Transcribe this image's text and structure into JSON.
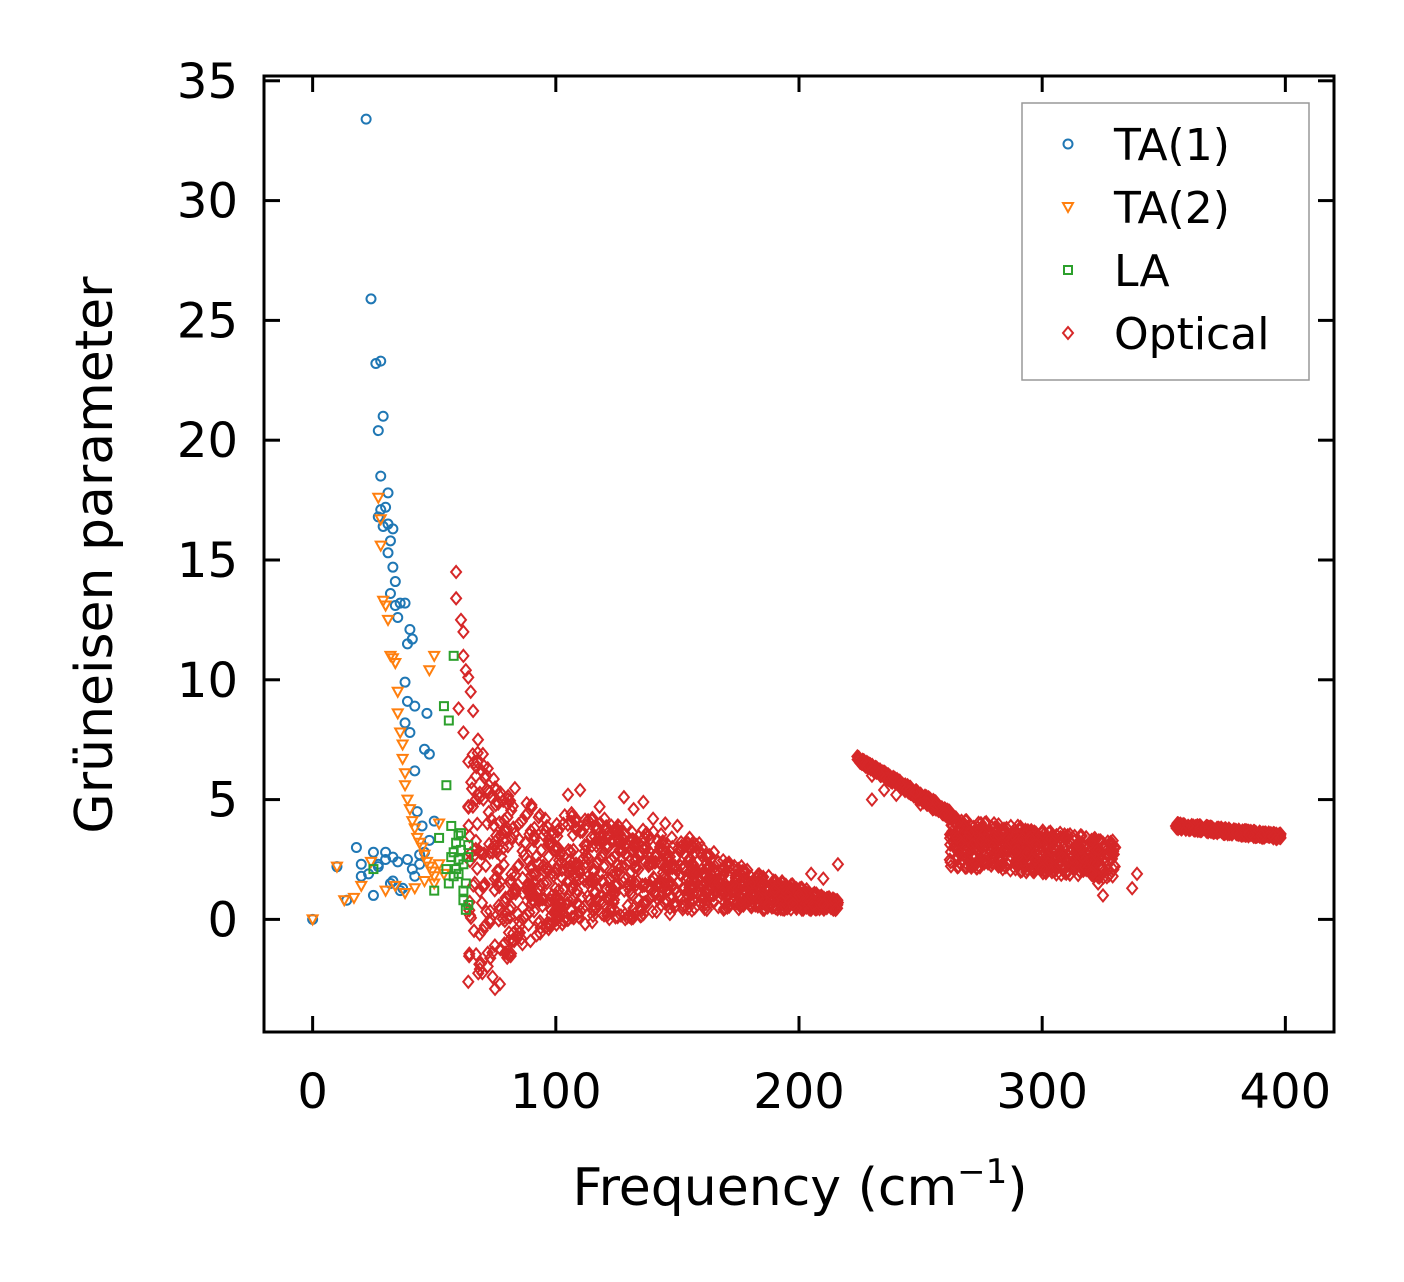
{
  "chart_data": {
    "type": "scatter",
    "title": "",
    "xlabel": "Frequency (cm",
    "xlabel_sup": "−1",
    "xlabel_close": ")",
    "ylabel": "Grüneisen parameter",
    "xlim": [
      -20,
      420
    ],
    "ylim": [
      -4.7,
      35.2
    ],
    "xticks": [
      0,
      100,
      200,
      300,
      400
    ],
    "xtick_labels": [
      "0",
      "100",
      "200",
      "300",
      "400"
    ],
    "yticks": [
      0,
      5,
      10,
      15,
      20,
      25,
      30,
      35
    ],
    "ytick_labels": [
      "0",
      "5",
      "10",
      "15",
      "20",
      "25",
      "30",
      "35"
    ],
    "grid": false,
    "legend_position": "top-right",
    "series": [
      {
        "name": "TA(1)",
        "marker": "circle",
        "color": "#1f77b4",
        "points": [
          [
            0,
            0
          ],
          [
            10,
            2.2
          ],
          [
            14,
            0.8
          ],
          [
            18,
            3
          ],
          [
            20,
            1.8
          ],
          [
            22,
            33.4
          ],
          [
            24,
            25.9
          ],
          [
            25,
            1
          ],
          [
            25,
            2.8
          ],
          [
            26,
            23.2
          ],
          [
            27,
            20.4
          ],
          [
            27,
            16.8
          ],
          [
            27,
            2.3
          ],
          [
            28,
            23.3
          ],
          [
            28,
            18.5
          ],
          [
            28,
            17.1
          ],
          [
            29,
            21
          ],
          [
            29,
            16.4
          ],
          [
            30,
            17.2
          ],
          [
            30,
            2.5
          ],
          [
            31,
            17.8
          ],
          [
            31,
            16.5
          ],
          [
            31,
            15.3
          ],
          [
            32,
            15.8
          ],
          [
            32,
            13.6
          ],
          [
            32,
            1.5
          ],
          [
            33,
            16.3
          ],
          [
            33,
            14.7
          ],
          [
            33,
            2.6
          ],
          [
            34,
            14.1
          ],
          [
            34,
            13.1
          ],
          [
            35,
            12.6
          ],
          [
            35,
            2.4
          ],
          [
            36,
            13.2
          ],
          [
            37,
            1.3
          ],
          [
            38,
            13.2
          ],
          [
            38,
            9.9
          ],
          [
            38,
            8.2
          ],
          [
            39,
            11.5
          ],
          [
            39,
            9.1
          ],
          [
            40,
            12.1
          ],
          [
            40,
            7.8
          ],
          [
            41,
            11.7
          ],
          [
            41,
            2.1
          ],
          [
            42,
            8.9
          ],
          [
            42,
            6.2
          ],
          [
            43,
            4.5
          ],
          [
            44,
            2.7
          ],
          [
            45,
            3.9
          ],
          [
            46,
            7.1
          ],
          [
            47,
            8.6
          ],
          [
            48,
            6.9
          ],
          [
            50,
            4.1
          ],
          [
            20,
            2.3
          ],
          [
            23,
            1.9
          ],
          [
            27,
            2.2
          ],
          [
            30,
            2.8
          ],
          [
            33,
            1.6
          ],
          [
            36,
            1.2
          ],
          [
            39,
            2.5
          ],
          [
            42,
            1.8
          ],
          [
            44,
            2.3
          ],
          [
            46,
            2.8
          ],
          [
            48,
            3.3
          ]
        ]
      },
      {
        "name": "TA(2)",
        "marker": "triangle-down",
        "color": "#ff7f0e",
        "points": [
          [
            0,
            0
          ],
          [
            10,
            2.2
          ],
          [
            13,
            0.8
          ],
          [
            17,
            0.9
          ],
          [
            20,
            1.4
          ],
          [
            24,
            2.4
          ],
          [
            27,
            17.6
          ],
          [
            28,
            16.7
          ],
          [
            28,
            15.6
          ],
          [
            29,
            13.3
          ],
          [
            30,
            13.1
          ],
          [
            31,
            12.5
          ],
          [
            32,
            11
          ],
          [
            33,
            10.9
          ],
          [
            34,
            10.7
          ],
          [
            35,
            9.5
          ],
          [
            35,
            8.6
          ],
          [
            36,
            7.8
          ],
          [
            37,
            7.3
          ],
          [
            37,
            6.7
          ],
          [
            38,
            6.1
          ],
          [
            38,
            5.6
          ],
          [
            39,
            5
          ],
          [
            40,
            4.6
          ],
          [
            41,
            4.1
          ],
          [
            42,
            3.8
          ],
          [
            43,
            3.4
          ],
          [
            44,
            3.2
          ],
          [
            45,
            3
          ],
          [
            46,
            2.7
          ],
          [
            47,
            2.4
          ],
          [
            48,
            2.2
          ],
          [
            49,
            2
          ],
          [
            50,
            1.8
          ],
          [
            48,
            10.4
          ],
          [
            50,
            11
          ],
          [
            52,
            4
          ],
          [
            30,
            1.2
          ],
          [
            34,
            1.4
          ],
          [
            38,
            1.1
          ],
          [
            42,
            1.3
          ],
          [
            46,
            1.6
          ],
          [
            50,
            1.5
          ],
          [
            52,
            2.3
          ],
          [
            54,
            1.9
          ]
        ]
      },
      {
        "name": "LA",
        "marker": "square",
        "color": "#2ca02c",
        "points": [
          [
            25,
            2.1
          ],
          [
            50,
            1.2
          ],
          [
            52,
            3.4
          ],
          [
            54,
            8.9
          ],
          [
            55,
            5.6
          ],
          [
            56,
            8.3
          ],
          [
            57,
            3.9
          ],
          [
            58,
            11
          ],
          [
            58,
            2.8
          ],
          [
            59,
            3.2
          ],
          [
            60,
            2.5
          ],
          [
            60,
            1.9
          ],
          [
            61,
            2.9
          ],
          [
            61,
            3.6
          ],
          [
            62,
            2.3
          ],
          [
            62,
            0.8
          ],
          [
            63,
            0.4
          ],
          [
            63,
            1.5
          ],
          [
            64,
            2.6
          ],
          [
            64,
            3.1
          ],
          [
            55,
            2.1
          ],
          [
            56,
            1.5
          ],
          [
            57,
            2.6
          ],
          [
            58,
            1.8
          ],
          [
            59,
            2.1
          ],
          [
            60,
            3.5
          ],
          [
            62,
            1.2
          ],
          [
            64,
            0.6
          ]
        ]
      },
      {
        "name": "Optical",
        "marker": "diamond",
        "color": "#d62728",
        "generator": "band",
        "points": [
          [
            59,
            14.5
          ],
          [
            59,
            13.4
          ],
          [
            61,
            12.5
          ],
          [
            62,
            12
          ],
          [
            62,
            11
          ],
          [
            63,
            10.4
          ],
          [
            64,
            10.1
          ],
          [
            65,
            9.5
          ],
          [
            66,
            8.7
          ],
          [
            68,
            7.5
          ],
          [
            70,
            6.9
          ],
          [
            72,
            6.3
          ],
          [
            75,
            5.5
          ],
          [
            60,
            8.8
          ],
          [
            62,
            7.8
          ],
          [
            72,
            -1.4
          ],
          [
            74,
            -2.4
          ],
          [
            75,
            -2.9
          ],
          [
            77,
            -2.7
          ],
          [
            80,
            -1.6
          ],
          [
            82,
            -0.9
          ],
          [
            85,
            -0.3
          ],
          [
            88,
            0.2
          ],
          [
            92,
            0.9
          ],
          [
            95,
            1.5
          ],
          [
            105,
            5.2
          ],
          [
            110,
            5.4
          ],
          [
            115,
            4.2
          ],
          [
            118,
            4.7
          ],
          [
            120,
            4.2
          ],
          [
            125,
            3.8
          ],
          [
            128,
            5.1
          ],
          [
            132,
            4.6
          ],
          [
            136,
            4.9
          ],
          [
            140,
            4.2
          ],
          [
            145,
            4
          ],
          [
            150,
            3.9
          ],
          [
            155,
            3.4
          ],
          [
            160,
            3
          ],
          [
            165,
            2.8
          ],
          [
            170,
            2.3
          ],
          [
            175,
            2.1
          ],
          [
            180,
            1.5
          ],
          [
            190,
            1.2
          ],
          [
            200,
            1
          ],
          [
            205,
            1.9
          ],
          [
            210,
            1.7
          ],
          [
            216,
            2.3
          ],
          [
            215,
            0.4
          ],
          [
            224,
            6.8
          ],
          [
            226,
            6.6
          ],
          [
            230,
            6
          ],
          [
            235,
            5.4
          ],
          [
            240,
            5.2
          ],
          [
            250,
            4.8
          ],
          [
            255,
            4.6
          ],
          [
            260,
            4.4
          ],
          [
            265,
            4
          ],
          [
            270,
            3.6
          ],
          [
            275,
            3.3
          ],
          [
            280,
            3.1
          ],
          [
            285,
            2.9
          ],
          [
            290,
            3.9
          ],
          [
            295,
            3.4
          ],
          [
            300,
            3.6
          ],
          [
            305,
            3
          ],
          [
            310,
            3.4
          ],
          [
            315,
            3.1
          ],
          [
            320,
            3.2
          ],
          [
            325,
            3.2
          ],
          [
            330,
            3
          ],
          [
            323,
            1.5
          ],
          [
            325,
            1
          ],
          [
            337,
            1.3
          ],
          [
            339,
            1.9
          ],
          [
            230,
            5
          ],
          [
            355,
            3.9
          ],
          [
            360,
            3.9
          ],
          [
            365,
            3.8
          ],
          [
            370,
            3.7
          ],
          [
            375,
            3.65
          ],
          [
            380,
            3.6
          ],
          [
            385,
            3.55
          ],
          [
            390,
            3.5
          ],
          [
            395,
            3.45
          ],
          [
            398,
            3.4
          ]
        ]
      }
    ]
  }
}
